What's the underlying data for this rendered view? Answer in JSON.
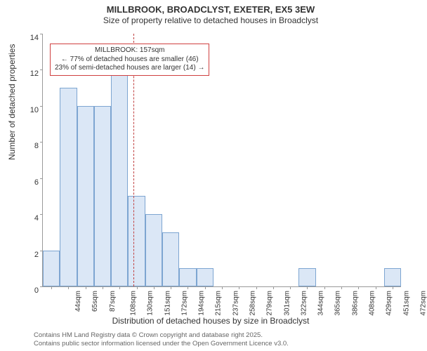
{
  "titles": {
    "line1": "MILLBROOK, BROADCLYST, EXETER, EX5 3EW",
    "line2": "Size of property relative to detached houses in Broadclyst"
  },
  "axes": {
    "ylabel": "Number of detached properties",
    "xlabel": "Distribution of detached houses by size in Broadclyst",
    "ylim": [
      0,
      14
    ],
    "ytick_step": 2,
    "label_fontsize": 12
  },
  "histogram": {
    "type": "histogram",
    "bar_fill": "#dbe7f6",
    "bar_border": "#7da5d1",
    "background_color": "#ffffff",
    "categories": [
      "44sqm",
      "65sqm",
      "87sqm",
      "108sqm",
      "130sqm",
      "151sqm",
      "172sqm",
      "194sqm",
      "215sqm",
      "237sqm",
      "258sqm",
      "279sqm",
      "301sqm",
      "322sqm",
      "344sqm",
      "365sqm",
      "386sqm",
      "408sqm",
      "429sqm",
      "451sqm",
      "472sqm"
    ],
    "values": [
      2,
      11,
      10,
      10,
      12,
      5,
      4,
      3,
      1,
      1,
      0,
      0,
      0,
      0,
      0,
      1,
      0,
      0,
      0,
      0,
      1
    ],
    "bar_width": 1.0
  },
  "reference": {
    "x_index": 5,
    "color": "#c04040",
    "annotation": {
      "line1": "MILLBROOK: 157sqm",
      "line2": "← 77% of detached houses are smaller (46)",
      "line3": "23% of semi-detached houses are larger (14) →",
      "border_color": "#d04040"
    }
  },
  "footer": {
    "line1": "Contains HM Land Registry data © Crown copyright and database right 2025.",
    "line2": "Contains public sector information licensed under the Open Government Licence v3.0."
  }
}
